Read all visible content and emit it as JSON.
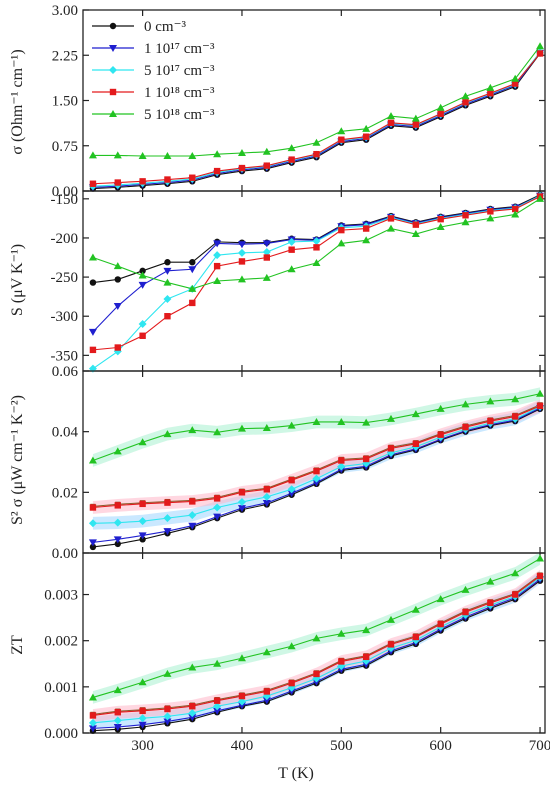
{
  "chart_data": [
    {
      "type": "line",
      "panel": "sigma",
      "ylabel": "σ (Ohm⁻¹ cm⁻¹)",
      "ylim": [
        0,
        3.0
      ],
      "yticks": [
        "0.00",
        "0.75",
        "1.50",
        "2.25",
        "3.00"
      ],
      "ytick_values": [
        0,
        0.75,
        1.5,
        2.25,
        3.0
      ],
      "xlim": [
        240,
        705
      ],
      "x": [
        250,
        275,
        300,
        325,
        350,
        375,
        400,
        425,
        450,
        475,
        500,
        525,
        550,
        575,
        600,
        625,
        650,
        675,
        700
      ],
      "legend_position": "top-left",
      "series": [
        {
          "name": "0 cm⁻³",
          "values": [
            0.04,
            0.06,
            0.09,
            0.12,
            0.16,
            0.27,
            0.33,
            0.37,
            0.47,
            0.56,
            0.8,
            0.85,
            1.08,
            1.05,
            1.23,
            1.42,
            1.57,
            1.73,
            2.28
          ]
        },
        {
          "name": "1 10¹⁷ cm⁻³",
          "values": [
            0.06,
            0.08,
            0.11,
            0.14,
            0.18,
            0.29,
            0.35,
            0.39,
            0.49,
            0.58,
            0.82,
            0.87,
            1.1,
            1.07,
            1.25,
            1.44,
            1.59,
            1.75,
            2.29
          ]
        },
        {
          "name": "5 10¹⁷ cm⁻³",
          "values": [
            0.08,
            0.1,
            0.13,
            0.16,
            0.2,
            0.31,
            0.37,
            0.41,
            0.51,
            0.6,
            0.84,
            0.89,
            1.12,
            1.09,
            1.27,
            1.46,
            1.61,
            1.77,
            2.3
          ]
        },
        {
          "name": "1 10¹⁸ cm⁻³",
          "values": [
            0.12,
            0.14,
            0.16,
            0.19,
            0.22,
            0.33,
            0.38,
            0.42,
            0.52,
            0.61,
            0.85,
            0.9,
            1.13,
            1.1,
            1.28,
            1.47,
            1.62,
            1.78,
            2.28
          ]
        },
        {
          "name": "5 10¹⁸ cm⁻³",
          "values": [
            0.59,
            0.59,
            0.58,
            0.58,
            0.58,
            0.61,
            0.63,
            0.65,
            0.71,
            0.8,
            0.99,
            1.03,
            1.24,
            1.2,
            1.38,
            1.57,
            1.71,
            1.86,
            2.4
          ]
        }
      ]
    },
    {
      "type": "line",
      "panel": "S",
      "ylabel": "S (μV K⁻¹)",
      "ylim": [
        -370,
        -140
      ],
      "yticks": [
        "-150",
        "-200",
        "-250",
        "-300",
        "-350"
      ],
      "ytick_values": [
        -150,
        -200,
        -250,
        -300,
        -350
      ],
      "xlim": [
        240,
        705
      ],
      "x": [
        250,
        275,
        300,
        325,
        350,
        375,
        400,
        425,
        450,
        475,
        500,
        525,
        550,
        575,
        600,
        625,
        650,
        675,
        700
      ],
      "series": [
        {
          "name": "0 cm⁻³",
          "values": [
            -257,
            -253,
            -242,
            -231,
            -231,
            -205,
            -206,
            -206,
            -201,
            -202,
            -184,
            -182,
            -172,
            -180,
            -173,
            -168,
            -163,
            -160,
            -145
          ]
        },
        {
          "name": "1 10¹⁷ cm⁻³",
          "values": [
            -320,
            -287,
            -260,
            -242,
            -240,
            -207,
            -208,
            -207,
            -202,
            -203,
            -185,
            -183,
            -173,
            -181,
            -174,
            -169,
            -164,
            -161,
            -146
          ]
        },
        {
          "name": "5 10¹⁷ cm⁻³",
          "values": [
            -367,
            -345,
            -310,
            -278,
            -265,
            -222,
            -219,
            -218,
            -205,
            -204,
            -187,
            -185,
            -174,
            -182,
            -175,
            -170,
            -165,
            -162,
            -146
          ]
        },
        {
          "name": "1 10¹⁸ cm⁻³",
          "values": [
            -343,
            -340,
            -325,
            -300,
            -283,
            -236,
            -230,
            -225,
            -215,
            -212,
            -190,
            -188,
            -175,
            -183,
            -176,
            -171,
            -166,
            -163,
            -147
          ]
        },
        {
          "name": "5 10¹⁸ cm⁻³",
          "values": [
            -225,
            -236,
            -248,
            -257,
            -265,
            -255,
            -253,
            -251,
            -240,
            -232,
            -207,
            -203,
            -188,
            -195,
            -186,
            -180,
            -175,
            -170,
            -150
          ]
        }
      ]
    },
    {
      "type": "line",
      "panel": "power-factor",
      "ylabel": "S² σ (μW cm⁻¹ K⁻²)",
      "ylim": [
        0,
        0.06
      ],
      "yticks": [
        "0.00",
        "0.02",
        "0.04",
        "0.06"
      ],
      "ytick_values": [
        0,
        0.02,
        0.04,
        0.06
      ],
      "xlim": [
        240,
        705
      ],
      "x": [
        250,
        275,
        300,
        325,
        350,
        375,
        400,
        425,
        450,
        475,
        500,
        525,
        550,
        575,
        600,
        625,
        650,
        675,
        700
      ],
      "series": [
        {
          "name": "0 cm⁻³",
          "values": [
            0.002,
            0.003,
            0.0045,
            0.0065,
            0.0085,
            0.0115,
            0.0143,
            0.016,
            0.0192,
            0.0228,
            0.0272,
            0.0282,
            0.032,
            0.034,
            0.0372,
            0.04,
            0.042,
            0.0435,
            0.0475
          ]
        },
        {
          "name": "1 10¹⁷ cm⁻³",
          "values": [
            0.0035,
            0.0045,
            0.0058,
            0.0072,
            0.009,
            0.012,
            0.0148,
            0.0165,
            0.0197,
            0.0232,
            0.0276,
            0.0286,
            0.0324,
            0.0343,
            0.0375,
            0.0403,
            0.0423,
            0.0438,
            0.0478
          ]
        },
        {
          "name": "5 10¹⁷ cm⁻³",
          "values": [
            0.0098,
            0.01,
            0.0105,
            0.0115,
            0.0125,
            0.015,
            0.0168,
            0.0185,
            0.021,
            0.0245,
            0.0285,
            0.0295,
            0.033,
            0.035,
            0.0382,
            0.0408,
            0.0428,
            0.0442,
            0.0482
          ]
        },
        {
          "name": "1 10¹⁸ cm⁻³",
          "values": [
            0.015,
            0.0157,
            0.0162,
            0.0166,
            0.017,
            0.018,
            0.02,
            0.021,
            0.024,
            0.027,
            0.0305,
            0.031,
            0.0345,
            0.036,
            0.039,
            0.0415,
            0.0435,
            0.045,
            0.0485
          ]
        },
        {
          "name": "5 10¹⁸ cm⁻³",
          "values": [
            0.0305,
            0.0335,
            0.0365,
            0.0392,
            0.0405,
            0.0398,
            0.041,
            0.0412,
            0.042,
            0.0432,
            0.0432,
            0.043,
            0.0442,
            0.0458,
            0.0475,
            0.049,
            0.05,
            0.0507,
            0.0525
          ]
        }
      ]
    },
    {
      "type": "line",
      "panel": "ZT",
      "ylabel": "ZT",
      "xlabel": "T (K)",
      "ylim": [
        0,
        0.0039
      ],
      "yticks": [
        "0.000",
        "0.001",
        "0.002",
        "0.003"
      ],
      "ytick_values": [
        0,
        0.001,
        0.002,
        0.003
      ],
      "xlim": [
        240,
        705
      ],
      "xticks": [
        "300",
        "400",
        "500",
        "600",
        "700"
      ],
      "xtick_values": [
        300,
        400,
        500,
        600,
        700
      ],
      "x": [
        250,
        275,
        300,
        325,
        350,
        375,
        400,
        425,
        450,
        475,
        500,
        525,
        550,
        575,
        600,
        625,
        650,
        675,
        700
      ],
      "series": [
        {
          "name": "0 cm⁻³",
          "values": [
            5e-05,
            8e-05,
            0.00013,
            0.00021,
            0.0003,
            0.00045,
            0.00058,
            0.00068,
            0.00088,
            0.00108,
            0.00135,
            0.00146,
            0.00175,
            0.00193,
            0.00222,
            0.00248,
            0.0027,
            0.0029,
            0.0033
          ]
        },
        {
          "name": "1 10¹⁷ cm⁻³",
          "values": [
            0.0001,
            0.00013,
            0.00018,
            0.00025,
            0.00034,
            0.00048,
            0.0006,
            0.00071,
            0.00091,
            0.00111,
            0.00138,
            0.00149,
            0.00178,
            0.00196,
            0.00225,
            0.00251,
            0.00273,
            0.00293,
            0.00333
          ]
        },
        {
          "name": "5 10¹⁷ cm⁻³",
          "values": [
            0.00022,
            0.00027,
            0.00032,
            0.00036,
            0.00043,
            0.00058,
            0.00068,
            0.0008,
            0.00098,
            0.00118,
            0.00145,
            0.00156,
            0.00184,
            0.00201,
            0.0023,
            0.00256,
            0.00277,
            0.00296,
            0.00337
          ]
        },
        {
          "name": "1 10¹⁸ cm⁻³",
          "values": [
            0.00038,
            0.00045,
            0.00048,
            0.00052,
            0.00058,
            0.0007,
            0.0008,
            0.0009,
            0.00108,
            0.00128,
            0.00155,
            0.00165,
            0.00192,
            0.00208,
            0.00236,
            0.00262,
            0.00282,
            0.003,
            0.0034
          ]
        },
        {
          "name": "5 10¹⁸ cm⁻³",
          "values": [
            0.00077,
            0.00093,
            0.0011,
            0.00128,
            0.00142,
            0.0015,
            0.00162,
            0.00175,
            0.00188,
            0.00205,
            0.00215,
            0.00223,
            0.00245,
            0.00267,
            0.0029,
            0.0031,
            0.00328,
            0.00346,
            0.00378
          ]
        }
      ]
    }
  ],
  "colors": {
    "series": [
      "#111111",
      "#1f1fcf",
      "#2fe6f0",
      "#e31a1c",
      "#22c322"
    ],
    "bands": [
      "",
      "",
      "#9fd6ff",
      "#ffb6c8",
      "#a8f0d0"
    ],
    "extra_line": "#8b5a2b",
    "axis": "#222222"
  },
  "markers": [
    "circle",
    "triangle-down",
    "diamond",
    "square",
    "triangle-up"
  ]
}
